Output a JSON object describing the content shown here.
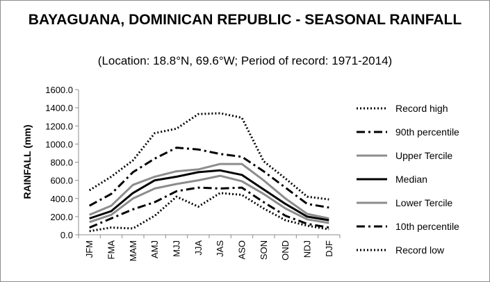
{
  "chart_data": {
    "type": "line",
    "title": "BAYAGUANA, DOMINICAN REPUBLIC - SEASONAL RAINFALL",
    "subtitle": "(Location: 18.8°N, 69.6°W; Period of record: 1971-2014)",
    "ylabel": "RAINFALL (mm)",
    "xlabel": "",
    "ylim": [
      0,
      1600
    ],
    "yticks": [
      "0.0",
      "200.0",
      "400.0",
      "600.0",
      "800.0",
      "1000.0",
      "1200.0",
      "1400.0",
      "1600.0"
    ],
    "categories": [
      "JFM",
      "FMA",
      "MAM",
      "AMJ",
      "MJJ",
      "JJA",
      "JAS",
      "ASO",
      "SON",
      "OND",
      "NDJ",
      "DJF"
    ],
    "legend_position": "right",
    "grid": false,
    "series": [
      {
        "name": "Record high",
        "color": "#000000",
        "style": "dotted",
        "values": [
          490,
          640,
          820,
          1120,
          1170,
          1330,
          1340,
          1290,
          810,
          620,
          420,
          390
        ]
      },
      {
        "name": "90th percentile",
        "color": "#000000",
        "style": "dashdot",
        "values": [
          320,
          450,
          690,
          840,
          960,
          940,
          890,
          860,
          700,
          520,
          340,
          300
        ]
      },
      {
        "name": "Upper Tercile",
        "color": "#8c8c8c",
        "style": "solid",
        "values": [
          220,
          320,
          550,
          640,
          700,
          720,
          780,
          780,
          600,
          400,
          230,
          180
        ]
      },
      {
        "name": "Median",
        "color": "#000000",
        "style": "solid",
        "values": [
          180,
          260,
          460,
          600,
          640,
          690,
          710,
          660,
          500,
          340,
          200,
          160
        ]
      },
      {
        "name": "Lower Tercile",
        "color": "#8c8c8c",
        "style": "solid",
        "values": [
          140,
          220,
          400,
          510,
          560,
          600,
          650,
          590,
          450,
          290,
          170,
          130
        ]
      },
      {
        "name": "10th percentile",
        "color": "#000000",
        "style": "dashdot",
        "values": [
          80,
          180,
          280,
          360,
          480,
          520,
          510,
          520,
          360,
          210,
          120,
          80
        ]
      },
      {
        "name": "Record low",
        "color": "#000000",
        "style": "dotted",
        "values": [
          40,
          80,
          70,
          210,
          420,
          310,
          460,
          440,
          290,
          160,
          100,
          60
        ]
      }
    ]
  }
}
